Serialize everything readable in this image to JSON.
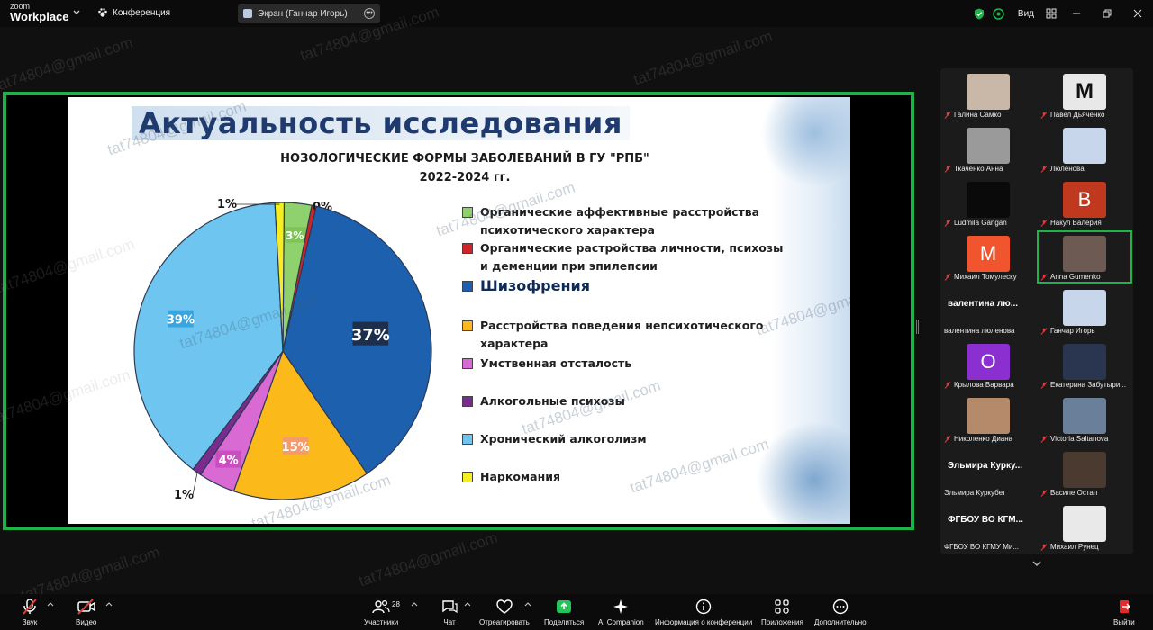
{
  "app": {
    "logo_line1": "zoom",
    "logo_line2": "Workplace"
  },
  "topbar": {
    "conference_label": "Конференция",
    "screen_label": "Экран (Ганчар Игорь)",
    "view_label": "Вид"
  },
  "slide": {
    "title": "Актуальность исследования",
    "watermark": "tat74804@gmail.com"
  },
  "chart_data": {
    "type": "pie",
    "title": "НОЗОЛОГИЧЕСКИЕ ФОРМЫ ЗАБОЛЕВАНИЙ В ГУ \"РПБ\"",
    "subtitle": "2022-2024 гг.",
    "slices": [
      {
        "label": "Органические аффективные расстройства психотического характера",
        "value": 3,
        "value_label": "3%",
        "color": "#8fd16d"
      },
      {
        "label": "Органические растройства личности, психозы и деменции при эпилепсии",
        "value": 0.5,
        "value_label": "0%",
        "color": "#d2232a"
      },
      {
        "label": "Шизофрения",
        "value": 37,
        "value_label": "37%",
        "color": "#1d60ad"
      },
      {
        "label": "Расстройства поведения непсихотического характера",
        "value": 15,
        "value_label": "15%",
        "color": "#fbb91a"
      },
      {
        "label": "Умственная отсталость",
        "value": 4,
        "value_label": "4%",
        "color": "#d969d3"
      },
      {
        "label": "Алкогольные психозы",
        "value": 1,
        "value_label": "1%",
        "color": "#7a2c8e"
      },
      {
        "label": "Хронический алкоголизм",
        "value": 39,
        "value_label": "39%",
        "color": "#6ec6f0"
      },
      {
        "label": "Наркомания",
        "value": 1,
        "value_label": "1%",
        "color": "#f6ee21"
      }
    ],
    "legend_placement": "right"
  },
  "participants": [
    {
      "name": "Галина Самко",
      "kind": "video",
      "color": "#c9b8a8"
    },
    {
      "name": "Павел Дьяченко",
      "kind": "logo",
      "color": "#e8e8e8",
      "initial": "M"
    },
    {
      "name": "Ткаченко Анна",
      "kind": "video",
      "color": "#9a9a9a"
    },
    {
      "name": "Люленова",
      "kind": "video",
      "color": "#c7d6ea"
    },
    {
      "name": "Ludmila Gangan",
      "kind": "video",
      "color": "#0a0a0a"
    },
    {
      "name": "Накул Валерия",
      "kind": "avatar",
      "color": "#c0391f",
      "initial": "B"
    },
    {
      "name": "Михаил Томулеску",
      "kind": "avatar",
      "color": "#f0552d",
      "initial": "M"
    },
    {
      "name": "Anna Gumenko",
      "kind": "video",
      "color": "#6d5a52",
      "active": true
    },
    {
      "name": "валентина люленова",
      "kind": "text",
      "big": "валентина  лю..."
    },
    {
      "name": "Ганчар Игорь",
      "kind": "video",
      "color": "#c7d6ea"
    },
    {
      "name": "Крылова Варвара",
      "kind": "avatar",
      "color": "#8c2fd0",
      "initial": "O"
    },
    {
      "name": "Екатерина Забутыри...",
      "kind": "video",
      "color": "#2a3550"
    },
    {
      "name": "Николенко Диана",
      "kind": "video",
      "color": "#b58a6a"
    },
    {
      "name": "Victoria Saltanova",
      "kind": "video",
      "color": "#6a7f9a"
    },
    {
      "name": "Эльмира Куркубет",
      "kind": "text",
      "big": "Эльмира  Курку..."
    },
    {
      "name": "Василе Остап",
      "kind": "video",
      "color": "#4a3a30"
    },
    {
      "name": "ФГБОУ ВО КГМУ Ми...",
      "kind": "text",
      "big": "ФГБОУ ВО КГМ..."
    },
    {
      "name": "Михаил Рунец",
      "kind": "video",
      "color": "#e9e9e9"
    }
  ],
  "toolbar": {
    "audio": "Звук",
    "video": "Видео",
    "participants": "Участники",
    "participants_count": "28",
    "chat": "Чат",
    "react": "Отреагировать",
    "share": "Поделиться",
    "ai": "AI Companion",
    "info": "Информация о конференции",
    "apps": "Приложения",
    "more": "Дополнительно",
    "leave": "Выйти"
  }
}
